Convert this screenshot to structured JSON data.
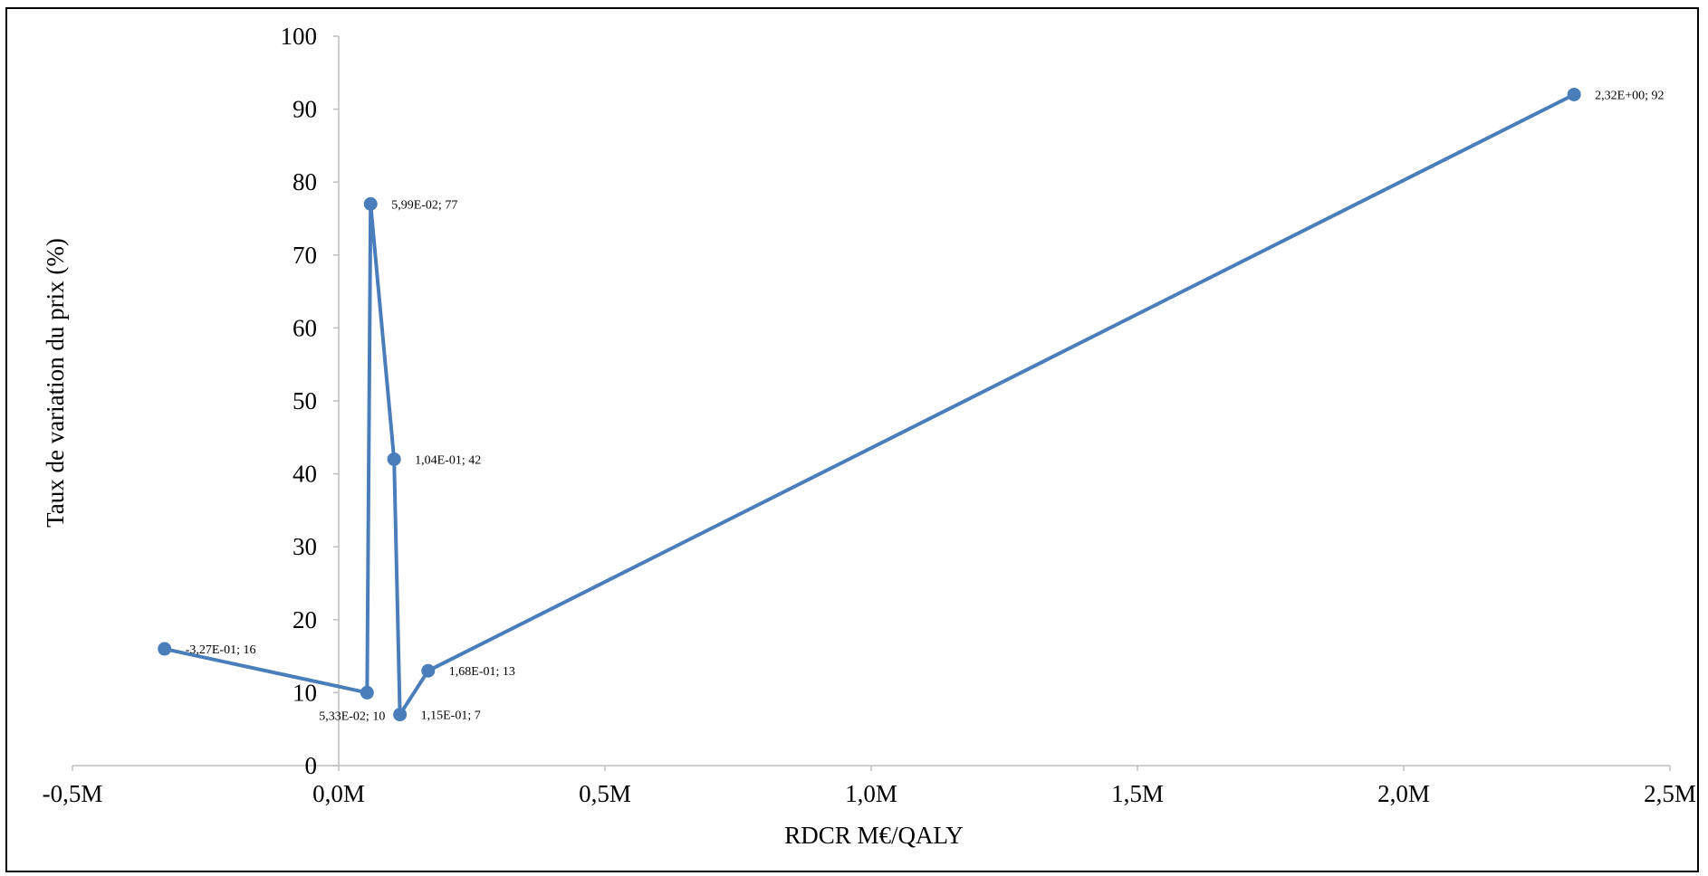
{
  "chart_data": {
    "type": "scatter",
    "mode": "lines+markers",
    "xlabel": "RDCR M€/QALY",
    "ylabel": "Taux de variation du prix (%)",
    "xlim": [
      -0.5,
      2.5
    ],
    "ylim": [
      0,
      100
    ],
    "x_ticks": [
      {
        "value": -0.5,
        "label": "-0,5M"
      },
      {
        "value": 0.0,
        "label": "0,0M"
      },
      {
        "value": 0.5,
        "label": "0,5M"
      },
      {
        "value": 1.0,
        "label": "1,0M"
      },
      {
        "value": 1.5,
        "label": "1,5M"
      },
      {
        "value": 2.0,
        "label": "2,0M"
      },
      {
        "value": 2.5,
        "label": "2,5M"
      }
    ],
    "y_ticks": [
      {
        "value": 0,
        "label": "0"
      },
      {
        "value": 10,
        "label": "10"
      },
      {
        "value": 20,
        "label": "20"
      },
      {
        "value": 30,
        "label": "30"
      },
      {
        "value": 40,
        "label": "40"
      },
      {
        "value": 50,
        "label": "50"
      },
      {
        "value": 60,
        "label": "60"
      },
      {
        "value": 70,
        "label": "70"
      },
      {
        "value": 80,
        "label": "80"
      },
      {
        "value": 90,
        "label": "90"
      },
      {
        "value": 100,
        "label": "100"
      }
    ],
    "grid": false,
    "legend": false,
    "series_color": "#4a7ebb",
    "series": [
      {
        "points": [
          {
            "x": -0.327,
            "y": 16,
            "label": "-3,27E-01; 16",
            "label_pos": "right"
          },
          {
            "x": 0.0533,
            "y": 10,
            "label": "5,33E-02; 10",
            "label_pos": "below-left"
          },
          {
            "x": 0.0599,
            "y": 77,
            "label": "5,99E-02; 77",
            "label_pos": "right"
          },
          {
            "x": 0.104,
            "y": 42,
            "label": "1,04E-01; 42",
            "label_pos": "right"
          },
          {
            "x": 0.115,
            "y": 7,
            "label": "1,15E-01; 7",
            "label_pos": "right"
          },
          {
            "x": 0.168,
            "y": 13,
            "label": "1,68E-01; 13",
            "label_pos": "right"
          },
          {
            "x": 2.32,
            "y": 92,
            "label": "2,32E+00; 92",
            "label_pos": "right"
          }
        ]
      }
    ]
  }
}
